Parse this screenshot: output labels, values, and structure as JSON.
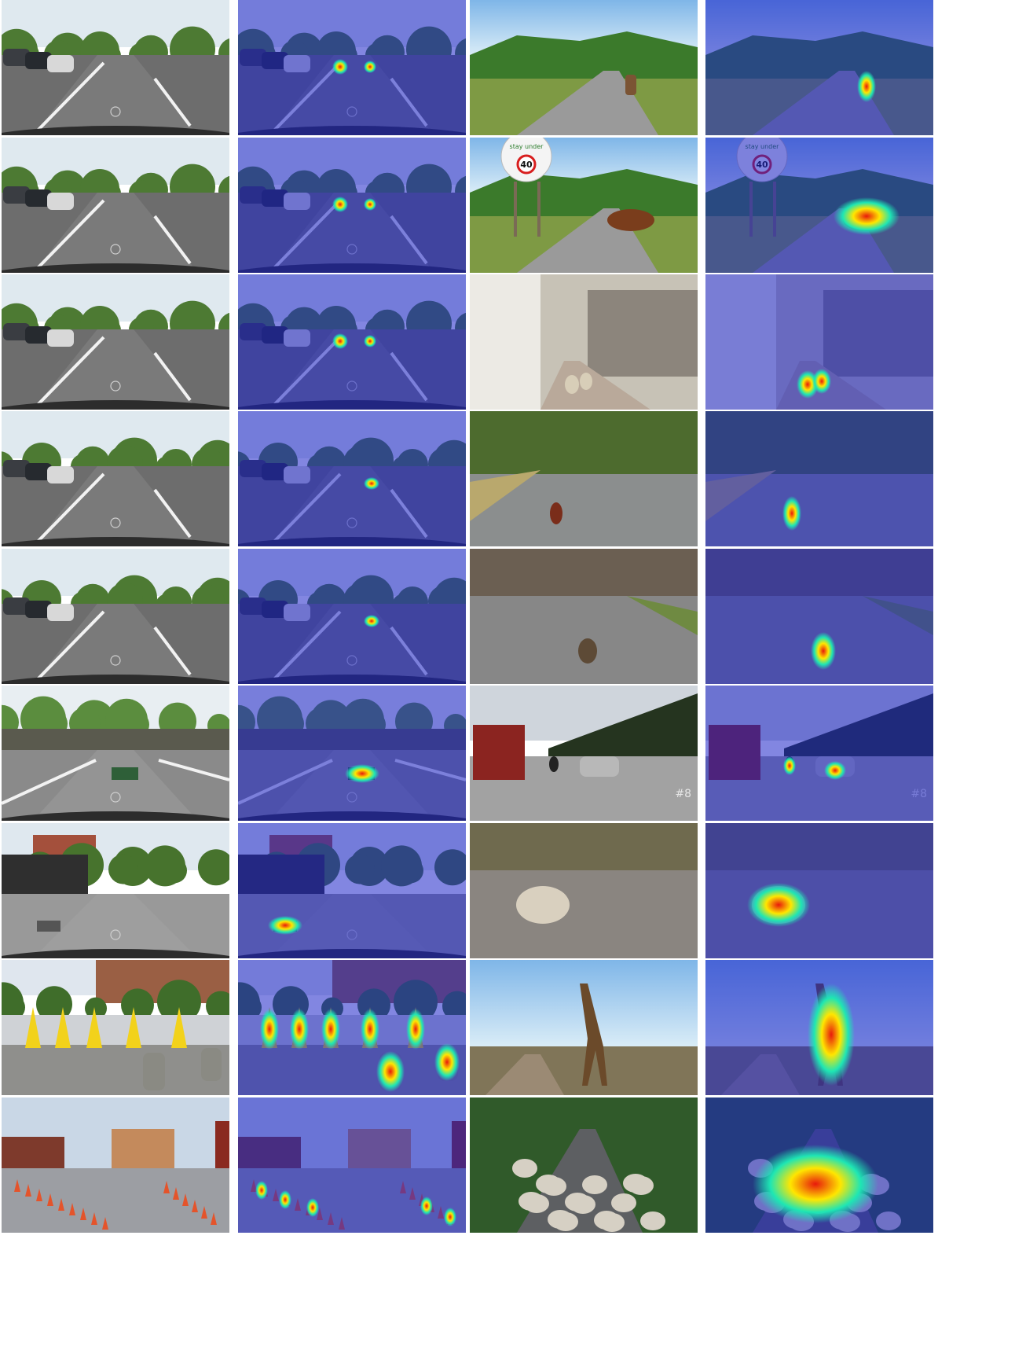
{
  "grid": {
    "rows": 9,
    "cols": 4,
    "row_scenes": [
      {
        "left": "parking",
        "right": "cow-mountain"
      },
      {
        "left": "parking",
        "right": "cow-sign"
      },
      {
        "left": "parking",
        "right": "sheep-village"
      },
      {
        "left": "campus",
        "right": "pheasant"
      },
      {
        "left": "campus",
        "right": "goose"
      },
      {
        "left": "crossing",
        "right": "truck"
      },
      {
        "left": "plaza",
        "right": "rock"
      },
      {
        "left": "cones",
        "right": "giraffe"
      },
      {
        "left": "cones-lot",
        "right": "sheep-flock"
      }
    ]
  },
  "sign": {
    "top_text": "stay under",
    "speed_limit": "40"
  },
  "watermark": "#8",
  "colors": {
    "background": "#ffffff",
    "heat_cold": "#1b22c8",
    "heat_warm": "#ffe600",
    "heat_hot": "#e8190c",
    "heat_mid": "#1ee6b4"
  }
}
